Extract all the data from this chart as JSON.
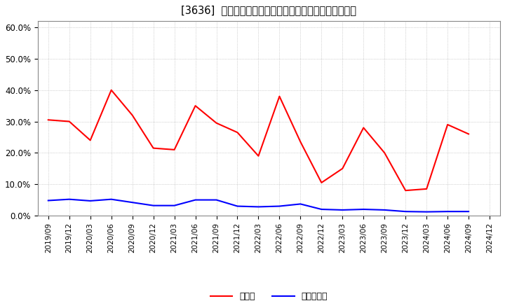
{
  "title": "[3636]  現預金、有利子負債の総資産に対する比率の推移",
  "x_labels": [
    "2019/09",
    "2019/12",
    "2020/03",
    "2020/06",
    "2020/09",
    "2020/12",
    "2021/03",
    "2021/06",
    "2021/09",
    "2021/12",
    "2022/03",
    "2022/06",
    "2022/09",
    "2022/12",
    "2023/03",
    "2023/06",
    "2023/09",
    "2023/12",
    "2024/03",
    "2024/06",
    "2024/09",
    "2024/12"
  ],
  "cash_values": [
    0.305,
    0.3,
    0.24,
    0.4,
    0.32,
    0.215,
    0.21,
    0.35,
    0.295,
    0.265,
    0.19,
    0.38,
    0.235,
    0.105,
    0.15,
    0.28,
    0.2,
    0.08,
    0.085,
    0.29,
    0.26,
    null
  ],
  "debt_values": [
    0.048,
    0.052,
    0.047,
    0.052,
    0.042,
    0.032,
    0.032,
    0.05,
    0.05,
    0.03,
    0.028,
    0.03,
    0.037,
    0.02,
    0.018,
    0.02,
    0.018,
    0.013,
    0.012,
    0.013,
    0.013,
    null
  ],
  "cash_color": "#ff0000",
  "debt_color": "#0000ff",
  "background_color": "#ffffff",
  "grid_color": "#aaaaaa",
  "ylim": [
    0,
    0.62
  ],
  "yticks": [
    0.0,
    0.1,
    0.2,
    0.3,
    0.4,
    0.5,
    0.6
  ],
  "legend_cash": "現預金",
  "legend_debt": "有利子負債"
}
